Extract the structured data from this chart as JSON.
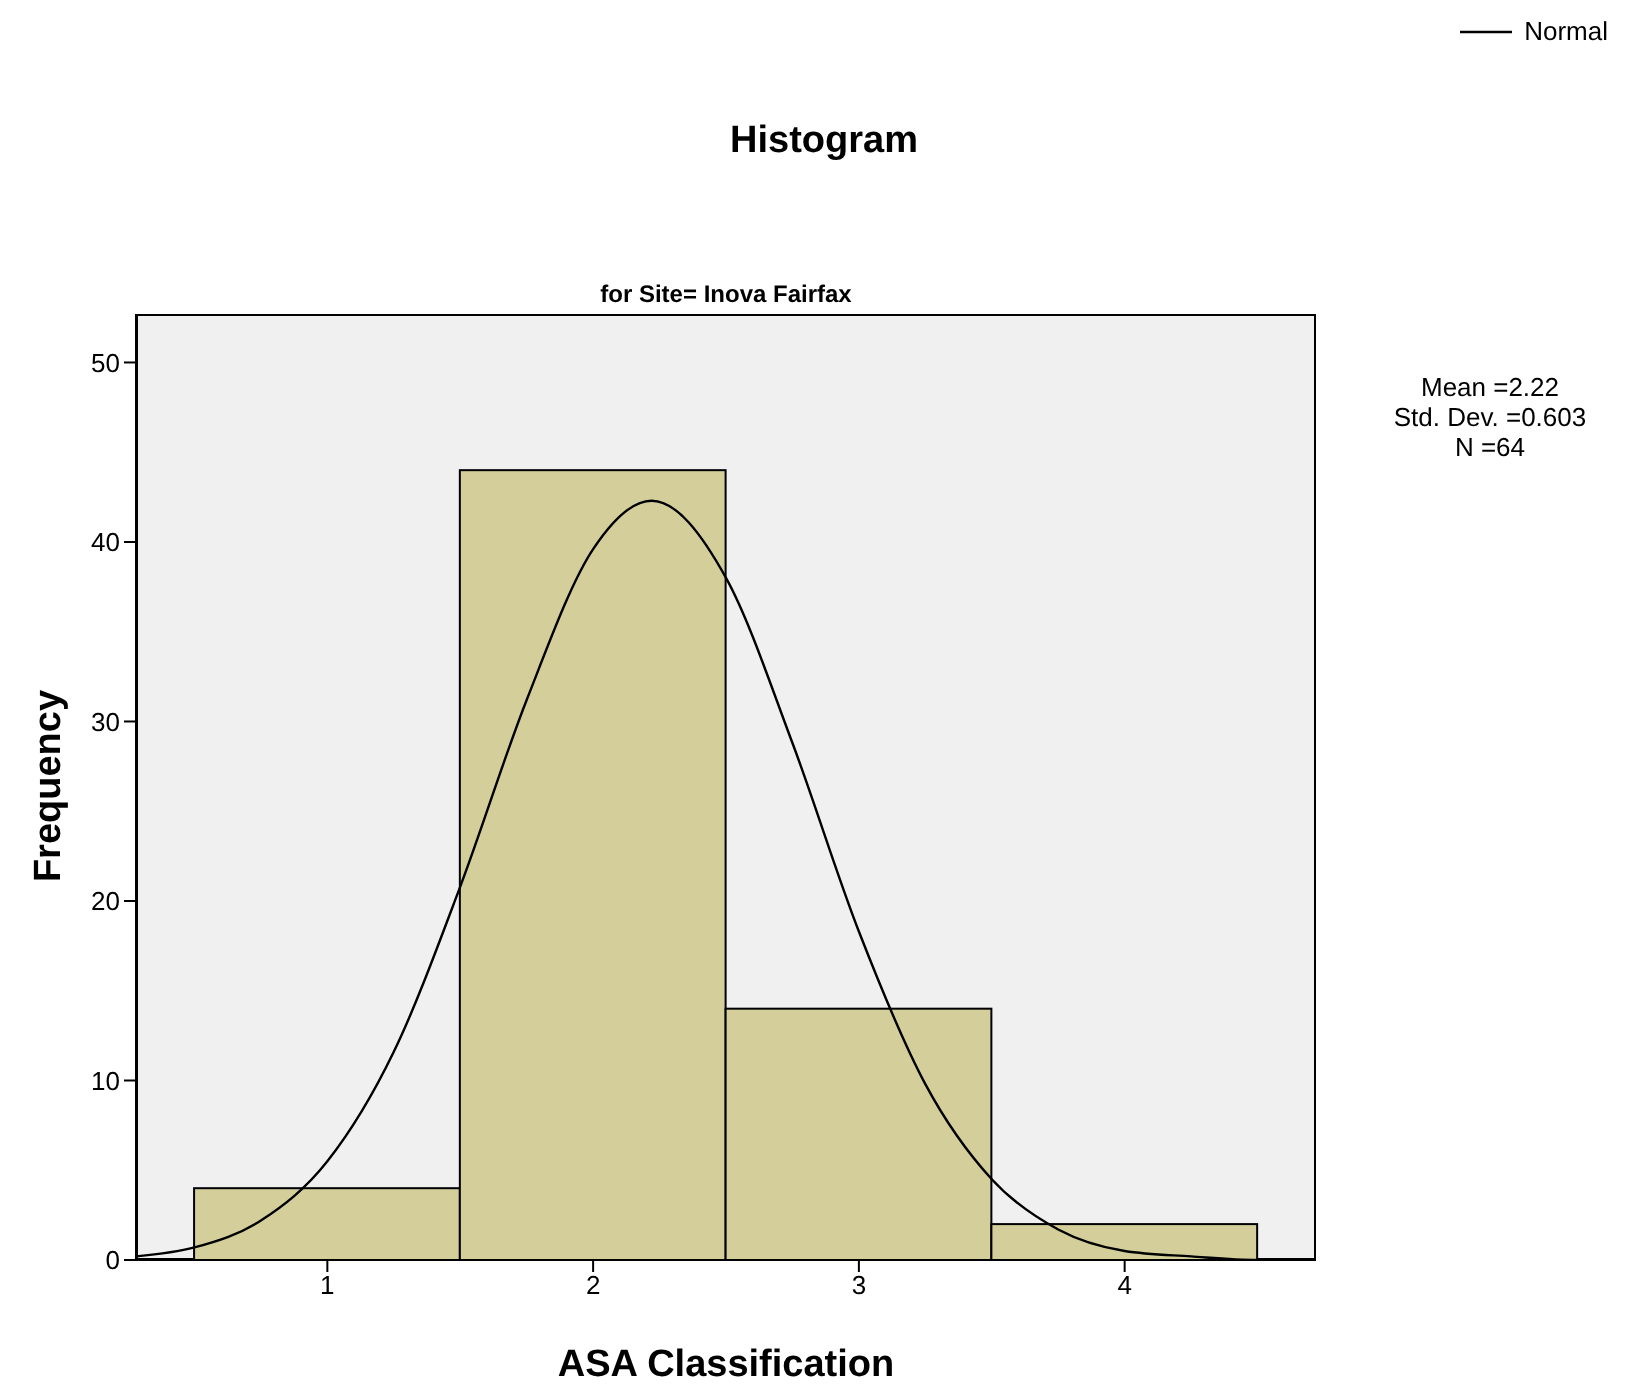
{
  "chart_data": {
    "type": "histogram",
    "title": "Histogram",
    "subtitle": "for Site= Inova Fairfax",
    "xlabel": "ASA Classification",
    "ylabel": "Frequency",
    "bins": [
      0.5,
      1.5,
      2.5,
      3.5,
      4.5
    ],
    "values": [
      4,
      44,
      14,
      2
    ],
    "color": "#d3ce9a",
    "series": [
      {
        "name": "Normal",
        "type": "line",
        "color": "#000000",
        "x": [
          0.28,
          0.5,
          0.75,
          1.0,
          1.25,
          1.5,
          1.75,
          2.0,
          2.22,
          2.5,
          2.75,
          3.0,
          3.25,
          3.5,
          3.75,
          4.0,
          4.25,
          4.5,
          4.72
        ],
        "values": [
          0.2,
          0.7,
          2.2,
          5.5,
          11.6,
          20.8,
          31.2,
          39.6,
          42.3,
          38,
          28.8,
          18.3,
          9.8,
          4.5,
          1.7,
          0.5,
          0.2,
          0,
          0
        ]
      }
    ],
    "xlim": [
      0.28,
      4.72
    ],
    "xticks": [
      1,
      2,
      3,
      4
    ],
    "ylim": [
      0,
      52.7
    ],
    "yticks": [
      0,
      10,
      20,
      30,
      40,
      50
    ],
    "annotations": [
      "Mean =2.22",
      "Std. Dev. =0.603",
      "N =64"
    ],
    "legend": "top right",
    "marker": "none",
    "grid": false
  }
}
